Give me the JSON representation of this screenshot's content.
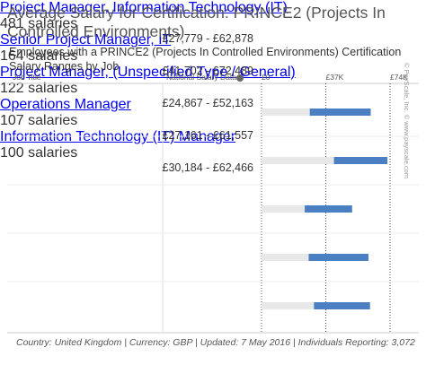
{
  "chart_data": {
    "type": "range",
    "title": "Average Salary for Certification: PRINCE2 (Projects In Controlled Environments)",
    "subtitle": "Employees with a PRINCE2 (Projects In Controlled Environments) Certification",
    "subtitle2": "Salary Ranges by Job",
    "column_job": "Job Title",
    "column_salary": "National Salary Data",
    "categories": [
      "Project Manager, Information Technology (IT)",
      "Senior Project Manager, IT",
      "Project Manager, (Unspecified Type / General)",
      "Operations Manager",
      "Information Technology (IT) Manager"
    ],
    "counts": [
      "481 salaries",
      "164 salaries",
      "122 salaries",
      "107 salaries",
      "100 salaries"
    ],
    "low": [
      27779,
      41702,
      24867,
      27161,
      30184
    ],
    "high": [
      62878,
      72489,
      52163,
      61557,
      62466
    ],
    "value_labels": [
      "£27,779 - £62,878",
      "£41,702 - £72,489",
      "£24,867 - £52,163",
      "£27,161 - £61,557",
      "£30,184 - £62,466"
    ],
    "color": "#4a7fc1",
    "track_color": "#e8e8e8",
    "xlim": [
      0,
      74000
    ],
    "xticks": [
      {
        "value": 0,
        "label": "£0"
      },
      {
        "value": 37000,
        "label": "£37K"
      },
      {
        "value": 74000,
        "label": "£74K"
      }
    ],
    "footer": "Country: United Kingdom | Currency: GBP | Updated: 7 May 2016 | Individuals Reporting: 3,072",
    "watermark": "© PayScale, Inc. © www.payscale.com"
  }
}
